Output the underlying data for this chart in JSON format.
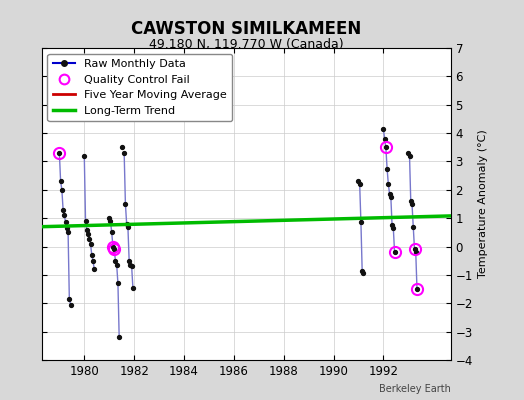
{
  "title": "CAWSTON SIMILKAMEEN",
  "subtitle": "49.180 N, 119.770 W (Canada)",
  "ylabel": "Temperature Anomaly (°C)",
  "credit": "Berkeley Earth",
  "xlim": [
    1978.3,
    1994.7
  ],
  "ylim": [
    -4,
    7
  ],
  "yticks": [
    -4,
    -3,
    -2,
    -1,
    0,
    1,
    2,
    3,
    4,
    5,
    6,
    7
  ],
  "xticks": [
    1980,
    1982,
    1984,
    1986,
    1988,
    1990,
    1992
  ],
  "bg_color": "#d8d8d8",
  "plot_bg_color": "#ffffff",
  "segments": [
    [
      [
        1979.0,
        3.3
      ],
      [
        1979.05,
        2.3
      ],
      [
        1979.1,
        2.0
      ],
      [
        1979.15,
        1.3
      ],
      [
        1979.2,
        1.1
      ],
      [
        1979.25,
        0.85
      ],
      [
        1979.3,
        0.65
      ],
      [
        1979.35,
        0.5
      ],
      [
        1979.4,
        -1.85
      ],
      [
        1979.45,
        -2.05
      ]
    ],
    [
      [
        1980.0,
        3.2
      ],
      [
        1980.05,
        0.9
      ],
      [
        1980.1,
        0.6
      ],
      [
        1980.15,
        0.45
      ],
      [
        1980.2,
        0.25
      ],
      [
        1980.25,
        0.1
      ],
      [
        1980.3,
        -0.3
      ],
      [
        1980.35,
        -0.5
      ],
      [
        1980.4,
        -0.8
      ]
    ],
    [
      [
        1981.0,
        1.0
      ],
      [
        1981.05,
        0.9
      ],
      [
        1981.1,
        0.5
      ],
      [
        1981.15,
        0.0
      ],
      [
        1981.2,
        -0.1
      ],
      [
        1981.25,
        -0.5
      ],
      [
        1981.3,
        -0.65
      ],
      [
        1981.35,
        -1.3
      ],
      [
        1981.4,
        -3.2
      ]
    ],
    [
      [
        1981.5,
        3.5
      ]
    ],
    [
      [
        1981.6,
        3.3
      ],
      [
        1981.65,
        1.5
      ],
      [
        1981.7,
        0.8
      ],
      [
        1981.75,
        0.7
      ],
      [
        1981.8,
        -0.5
      ],
      [
        1981.85,
        -0.65
      ],
      [
        1981.9,
        -0.7
      ],
      [
        1981.95,
        -1.45
      ]
    ],
    [
      [
        1991.0,
        2.3
      ],
      [
        1991.05,
        2.2
      ],
      [
        1991.1,
        0.85
      ],
      [
        1991.15,
        -0.85
      ],
      [
        1991.2,
        -0.95
      ]
    ],
    [
      [
        1992.0,
        4.15
      ],
      [
        1992.05,
        3.8
      ],
      [
        1992.1,
        3.5
      ],
      [
        1992.15,
        2.75
      ],
      [
        1992.2,
        2.2
      ],
      [
        1992.25,
        1.85
      ],
      [
        1992.3,
        1.75
      ],
      [
        1992.35,
        0.75
      ],
      [
        1992.4,
        0.65
      ],
      [
        1992.45,
        -0.2
      ]
    ],
    [
      [
        1993.0,
        3.3
      ],
      [
        1993.05,
        3.2
      ],
      [
        1993.1,
        1.6
      ],
      [
        1993.15,
        1.5
      ],
      [
        1993.2,
        0.7
      ],
      [
        1993.25,
        -0.1
      ],
      [
        1993.3,
        -0.2
      ],
      [
        1993.35,
        -1.5
      ]
    ]
  ],
  "qc_fail_points": [
    [
      1979.0,
      3.3
    ],
    [
      1981.15,
      0.0
    ],
    [
      1981.2,
      -0.1
    ],
    [
      1992.1,
      3.5
    ],
    [
      1992.45,
      -0.2
    ],
    [
      1993.25,
      -0.1
    ],
    [
      1993.35,
      -1.5
    ]
  ],
  "trend_x": [
    1978.3,
    1994.7
  ],
  "trend_y": [
    0.7,
    1.08
  ],
  "raw_line_color": "#7777cc",
  "dot_color": "#111111",
  "qc_color": "#ff00ff",
  "trend_color": "#00bb00",
  "ma_color": "#cc0000",
  "legend_raw_color": "#0000cc",
  "title_fontsize": 12,
  "subtitle_fontsize": 9,
  "label_fontsize": 8,
  "tick_fontsize": 8.5
}
